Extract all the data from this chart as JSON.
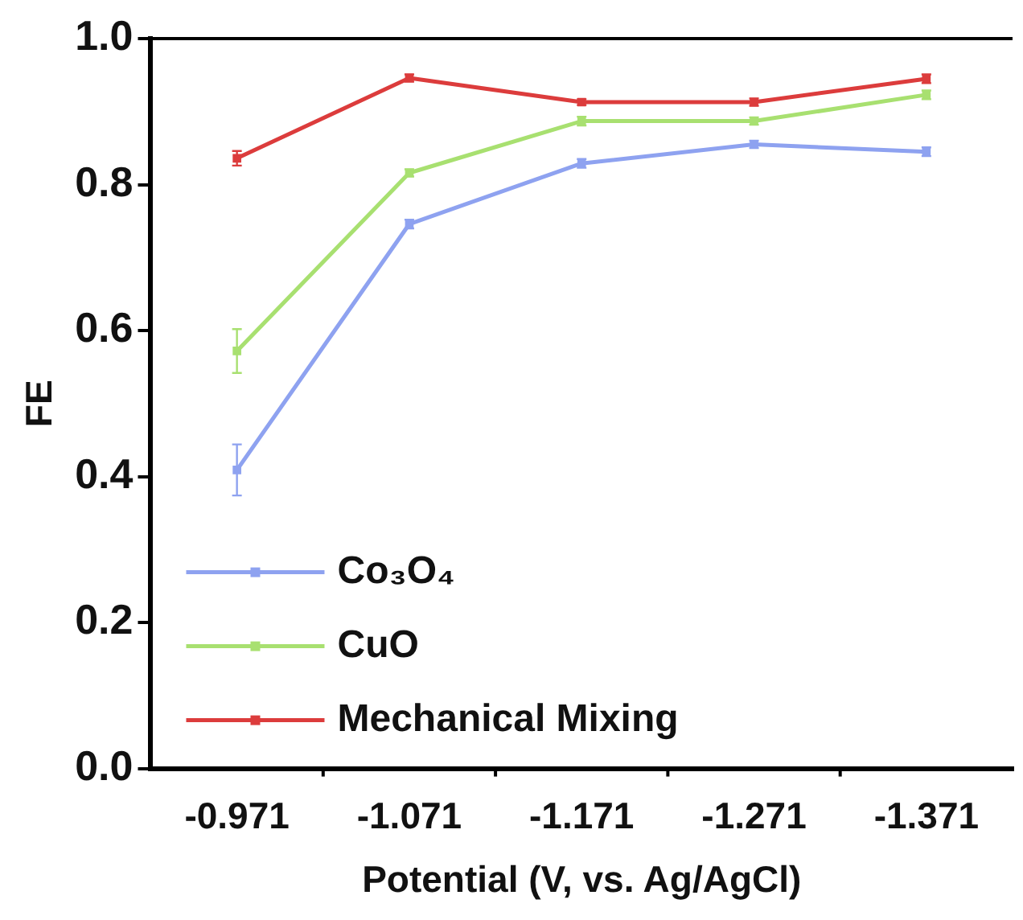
{
  "chart_data": {
    "type": "line",
    "xlabel": "Potential (V, vs. Ag/AgCl)",
    "ylabel": "FE",
    "categories": [
      "-0.971",
      "-1.071",
      "-1.171",
      "-1.271",
      "-1.371"
    ],
    "series": [
      {
        "name": "Co₃O₄",
        "color": "#8ea2f0",
        "values": [
          0.409,
          0.746,
          0.829,
          0.855,
          0.845
        ],
        "errors": [
          0.035,
          0.006,
          0.006,
          0.005,
          0.006
        ]
      },
      {
        "name": "CuO",
        "color": "#a8e070",
        "values": [
          0.572,
          0.816,
          0.887,
          0.887,
          0.923
        ],
        "errors": [
          0.03,
          0.005,
          0.006,
          0.005,
          0.006
        ]
      },
      {
        "name": "Mechanical Mixing",
        "color": "#dc3c3c",
        "values": [
          0.836,
          0.946,
          0.913,
          0.913,
          0.945
        ],
        "errors": [
          0.01,
          0.005,
          0.004,
          0.005,
          0.006
        ]
      }
    ],
    "ylim": [
      0,
      1
    ],
    "yticks": [
      {
        "value": 0,
        "label": "0.0"
      },
      0.2,
      0.4,
      0.6,
      0.8,
      {
        "value": 1,
        "label": "1.0"
      }
    ],
    "legend": "bottom left",
    "marker": "square",
    "grid": false
  }
}
